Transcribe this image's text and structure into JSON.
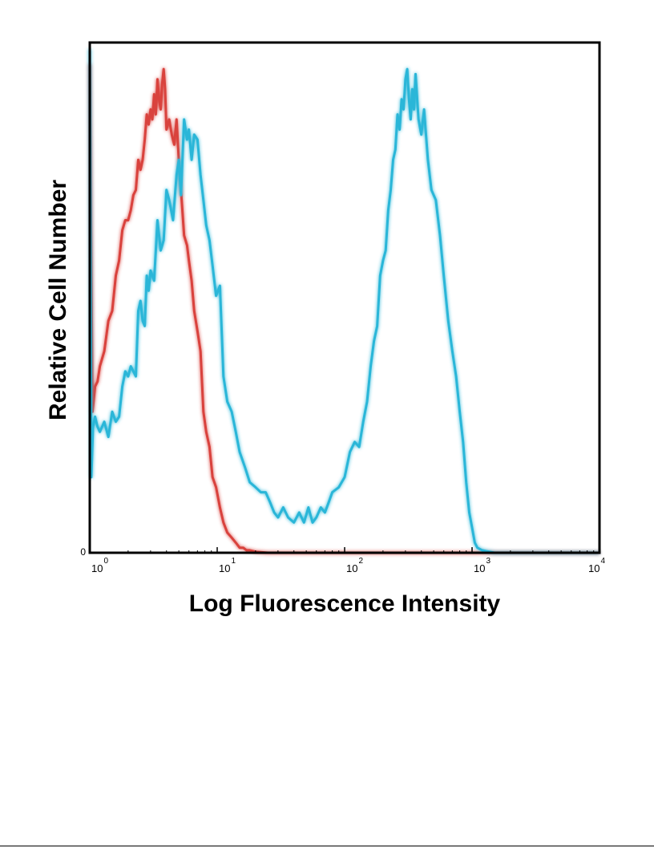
{
  "chart_data": {
    "type": "line",
    "title": "",
    "xlabel": "Log Fluorescence Intensity",
    "ylabel": "Relative Cell Number",
    "x_scale": "log",
    "xlim": [
      1,
      10000
    ],
    "ylim": [
      0,
      100
    ],
    "x_ticks": [
      {
        "base": "10",
        "exp": "0",
        "value": 1
      },
      {
        "base": "10",
        "exp": "1",
        "value": 10
      },
      {
        "base": "10",
        "exp": "2",
        "value": 100
      },
      {
        "base": "10",
        "exp": "3",
        "value": 1000
      },
      {
        "base": "10",
        "exp": "4",
        "value": 10000
      }
    ],
    "y_ticks": [
      {
        "label": "0",
        "value": 0
      }
    ],
    "grid": false,
    "legend": "none",
    "series": [
      {
        "color": "#d9423c",
        "x": [
          1.0,
          1.05,
          1.1,
          1.15,
          1.2,
          1.3,
          1.4,
          1.5,
          1.6,
          1.7,
          1.8,
          1.9,
          2.0,
          2.1,
          2.2,
          2.3,
          2.4,
          2.5,
          2.6,
          2.7,
          2.8,
          2.9,
          3.0,
          3.1,
          3.2,
          3.3,
          3.4,
          3.5,
          3.6,
          3.7,
          3.8,
          3.9,
          4.0,
          4.1,
          4.2,
          4.4,
          4.6,
          4.8,
          5.0,
          5.2,
          5.5,
          5.8,
          6.0,
          6.3,
          6.6,
          7.0,
          7.4,
          7.8,
          8.2,
          8.7,
          9.2,
          9.8,
          10.5,
          11.2,
          12.0,
          13.0,
          14.0,
          15.0,
          16.0,
          17.0,
          18.0,
          20.0,
          25.0,
          30.0,
          50.0,
          100.0,
          200.0,
          500.0,
          1000.0,
          2000.0,
          5000.0,
          10000.0
        ],
        "y": [
          97,
          28,
          33,
          34,
          37,
          40,
          46,
          48,
          55,
          58,
          64,
          66,
          66,
          68,
          71,
          72,
          78,
          76,
          78,
          82,
          87,
          85,
          88,
          86,
          91,
          87,
          94,
          90,
          88,
          93,
          96,
          92,
          84,
          85,
          86,
          83,
          81,
          86,
          78,
          72,
          63,
          61,
          58,
          54,
          48,
          44,
          40,
          28,
          24,
          21,
          15,
          13,
          9,
          6,
          4,
          3,
          2,
          1,
          1,
          0.5,
          0.5,
          0.2,
          0,
          0,
          0,
          0,
          0,
          0,
          0,
          0,
          0,
          0
        ]
      },
      {
        "color": "#29b6d8",
        "x": [
          1.0,
          1.03,
          1.06,
          1.1,
          1.15,
          1.2,
          1.3,
          1.4,
          1.5,
          1.6,
          1.7,
          1.8,
          1.9,
          2.0,
          2.1,
          2.2,
          2.3,
          2.4,
          2.5,
          2.6,
          2.7,
          2.8,
          2.9,
          3.0,
          3.2,
          3.4,
          3.6,
          3.8,
          4.0,
          4.2,
          4.5,
          4.8,
          5.0,
          5.2,
          5.5,
          5.8,
          6.0,
          6.3,
          6.6,
          7.0,
          7.4,
          7.8,
          8.2,
          8.7,
          9.2,
          9.8,
          10.5,
          11.2,
          12.0,
          13.0,
          14.0,
          15.0,
          16.5,
          18.0,
          20.0,
          22.0,
          24.0,
          26.0,
          28.0,
          30.0,
          33.0,
          36.0,
          40.0,
          44.0,
          48.0,
          52.0,
          56.0,
          60.0,
          65.0,
          70.0,
          75.0,
          80.0,
          90.0,
          100.0,
          110.0,
          120.0,
          130.0,
          140.0,
          150.0,
          160.0,
          170.0,
          180.0,
          190.0,
          200.0,
          210.0,
          220.0,
          230.0,
          240.0,
          250.0,
          260.0,
          270.0,
          280.0,
          290.0,
          300.0,
          310.0,
          320.0,
          330.0,
          340.0,
          350.0,
          360.0,
          380.0,
          400.0,
          420.0,
          450.0,
          480.0,
          520.0,
          560.0,
          600.0,
          650.0,
          700.0,
          750.0,
          800.0,
          850.0,
          900.0,
          950.0,
          1000.0,
          1050.0,
          1100.0,
          1200.0,
          1300.0,
          1500.0,
          2000.0,
          3000.0,
          5000.0,
          10000.0
        ],
        "y": [
          100,
          15,
          25,
          27,
          25,
          24,
          26,
          23,
          28,
          26,
          27,
          33,
          36,
          35,
          37,
          36,
          35,
          48,
          50,
          46,
          45,
          55,
          52,
          56,
          54,
          66,
          60,
          62,
          72,
          70,
          66,
          75,
          78,
          71,
          86,
          82,
          84,
          78,
          83,
          82,
          75,
          70,
          65,
          62,
          57,
          51,
          53,
          35,
          30,
          28,
          24,
          20,
          17,
          14,
          13,
          12,
          12,
          10,
          8,
          7,
          9,
          7,
          6,
          8,
          6,
          9,
          6,
          7,
          9,
          8,
          10,
          12,
          13,
          15,
          20,
          22,
          21,
          26,
          30,
          37,
          42,
          45,
          55,
          58,
          60,
          68,
          72,
          78,
          80,
          87,
          84,
          90,
          88,
          94,
          96,
          90,
          86,
          92,
          88,
          95,
          86,
          83,
          88,
          78,
          72,
          70,
          63,
          55,
          46,
          40,
          35,
          28,
          22,
          14,
          8,
          5,
          2,
          1,
          0.5,
          0.3,
          0,
          0,
          0,
          0,
          0
        ]
      }
    ]
  }
}
